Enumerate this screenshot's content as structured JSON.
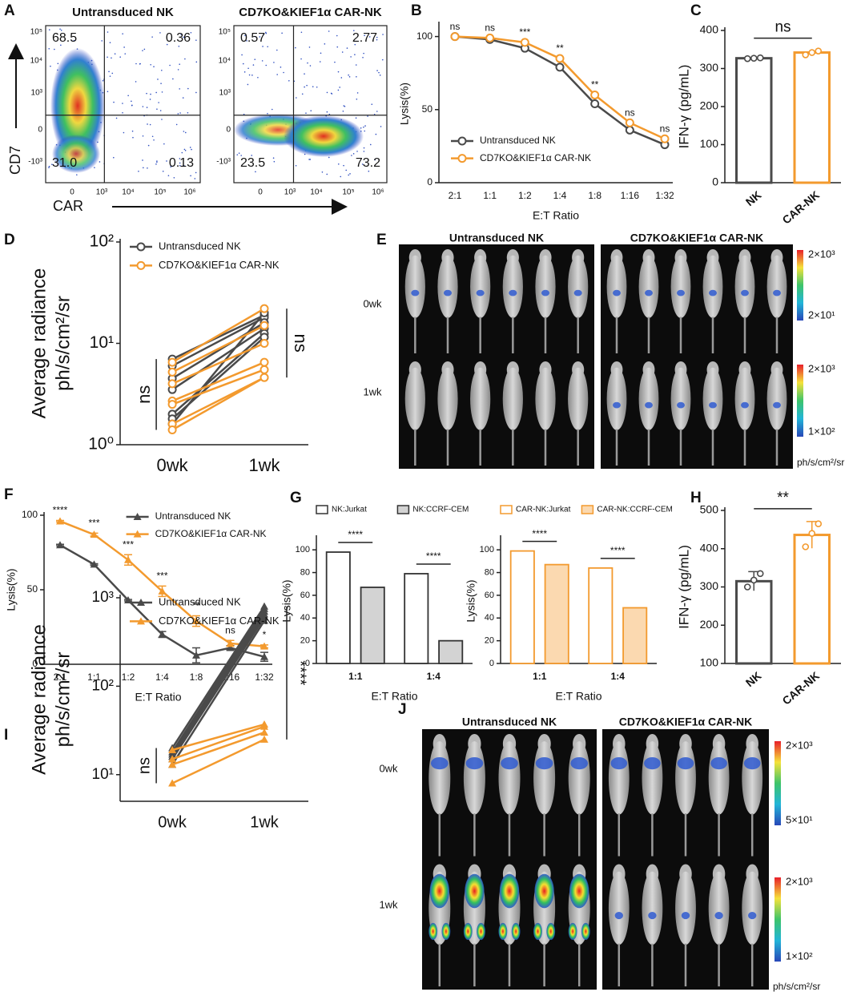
{
  "chart_data": [
    {
      "type": "line",
      "label": "B",
      "categories": [
        "2:1",
        "1:1",
        "1:2",
        "1:4",
        "1:8",
        "1:16",
        "1:32"
      ],
      "series": [
        {
          "name": "Untransduced NK",
          "color": "#4a4a4a",
          "values": [
            100,
            98,
            92,
            79,
            54,
            36,
            26
          ]
        },
        {
          "name": "CD7KO&KIEF1α CAR-NK",
          "color": "#f39a2e",
          "values": [
            100,
            99,
            96,
            85,
            60,
            41,
            30
          ]
        }
      ],
      "marker": "circle",
      "annotations": [
        "ns",
        "ns",
        "***",
        "**",
        "**",
        "ns",
        "ns"
      ],
      "ylabel": "Lysis(%)",
      "xlabel": "E:T Ratio",
      "ylim": [
        0,
        108
      ],
      "yticks": [
        0,
        50,
        100
      ],
      "legend": "lower left"
    },
    {
      "type": "bar",
      "label": "C",
      "categories": [
        "NK",
        "CAR-NK"
      ],
      "values": [
        327,
        342
      ],
      "colors": [
        "#4a4a4a",
        "#f39a2e"
      ],
      "points": [
        [
          326,
          327,
          328
        ],
        [
          336,
          342,
          346
        ]
      ],
      "annotation": "ns",
      "ylabel": "IFN-γ (pg/mL)",
      "ylim": [
        0,
        400
      ],
      "yticks": [
        0,
        100,
        200,
        300,
        400
      ]
    },
    {
      "type": "paired",
      "label": "D",
      "categories": [
        "0wk",
        "1wk"
      ],
      "series": [
        {
          "name": "Untransduced NK",
          "color": "#4a4a4a",
          "values": [
            [
              7.0,
              19
            ],
            [
              6.0,
              18
            ],
            [
              4.5,
              16
            ],
            [
              3.5,
              14
            ],
            [
              2.0,
              12.5
            ],
            [
              1.8,
              11.5
            ],
            [
              1.6,
              20
            ]
          ]
        },
        {
          "name": "CD7KO&KIEF1α CAR-NK",
          "color": "#f39a2e",
          "values": [
            [
              6.5,
              22
            ],
            [
              5.2,
              15
            ],
            [
              4.0,
              10
            ],
            [
              2.7,
              6.5
            ],
            [
              2.5,
              5.5
            ],
            [
              1.6,
              4.6
            ],
            [
              1.4,
              4.6
            ]
          ]
        }
      ],
      "marker": "circle",
      "log": true,
      "annotations": [
        "ns",
        "ns"
      ],
      "ylabel": [
        "Average radiance",
        "ph/s/cm²/sr"
      ],
      "ylim": [
        1,
        100
      ],
      "yticks": [
        {
          "value": 1,
          "label": "10⁰"
        },
        {
          "value": 10,
          "label": "10¹"
        },
        {
          "value": 100,
          "label": "10²"
        }
      ],
      "legend": "upper left"
    },
    {
      "type": "line",
      "label": "F",
      "categories": [
        "2:1",
        "1:1",
        "1:2",
        "1:4",
        "1:8",
        "1:16",
        "1:32"
      ],
      "series": [
        {
          "name": "Untransduced NK",
          "color": "#4a4a4a",
          "values": [
            80,
            67,
            43,
            20,
            6,
            11,
            5
          ],
          "errors": [
            0.5,
            0.5,
            0.5,
            2,
            5,
            1.5,
            3
          ]
        },
        {
          "name": "CD7KO&KIEF1α CAR-NK",
          "color": "#f39a2e",
          "values": [
            96,
            87,
            70,
            49,
            29,
            14,
            12
          ],
          "errors": [
            0.5,
            1,
            3.5,
            3.5,
            3.5,
            2,
            1
          ]
        }
      ],
      "marker": "triangle",
      "annotations": [
        "****",
        "***",
        "***",
        "***",
        "**",
        "ns",
        "*"
      ],
      "ylabel": "Lysis(%)",
      "xlabel": "E:T Ratio",
      "ylim": [
        0,
        100
      ],
      "yticks": [
        0,
        50,
        100
      ],
      "legend": "upper right"
    },
    {
      "type": "grouped_bar",
      "label": "G",
      "categories": [
        "1:1",
        "1:4"
      ],
      "series": [
        {
          "name": "NK:Jurkat",
          "color": "#333333",
          "fill": "#ffffff",
          "values": [
            98,
            79
          ]
        },
        {
          "name": "NK:CCRF-CEM",
          "color": "#333333",
          "fill": "#d3d3d3",
          "values": [
            67,
            20
          ]
        }
      ],
      "annotations": [
        "****",
        "****"
      ],
      "ylabel": "Lysis(%)",
      "xlabel": "E:T Ratio",
      "ylim": [
        0,
        110
      ],
      "yticks": [
        0,
        20,
        40,
        60,
        80,
        100
      ]
    },
    {
      "type": "grouped_bar",
      "categories": [
        "1:1",
        "1:4"
      ],
      "series": [
        {
          "name": "CAR-NK:Jurkat",
          "color": "#f39a2e",
          "fill": "#ffffff",
          "values": [
            99,
            84
          ]
        },
        {
          "name": "CAR-NK:CCRF-CEM",
          "color": "#f39a2e",
          "fill": "#fbd9b0",
          "values": [
            87,
            49
          ]
        }
      ],
      "annotations": [
        "****",
        "****"
      ],
      "ylabel": "Lysis(%)",
      "xlabel": "E:T Ratio",
      "ylim": [
        0,
        110
      ],
      "yticks": [
        0,
        20,
        40,
        60,
        80,
        100
      ]
    },
    {
      "type": "bar",
      "label": "H",
      "categories": [
        "NK",
        "CAR-NK"
      ],
      "values": [
        315,
        436
      ],
      "errors": [
        25,
        35
      ],
      "colors": [
        "#4a4a4a",
        "#f39a2e"
      ],
      "points": [
        [
          300,
          318,
          335
        ],
        [
          405,
          440,
          465
        ]
      ],
      "annotation": "**",
      "ylabel": "IFN-γ (pg/mL)",
      "ylim": [
        100,
        500
      ],
      "yticks": [
        100,
        200,
        300,
        400,
        500
      ]
    },
    {
      "type": "paired",
      "label": "I",
      "categories": [
        "0wk",
        "1wk"
      ],
      "series": [
        {
          "name": "Untransduced NK",
          "color": "#4a4a4a",
          "values": [
            [
              20,
              800
            ],
            [
              18,
              750
            ],
            [
              17,
              700
            ],
            [
              16,
              650
            ],
            [
              15,
              600
            ],
            [
              13,
              550
            ]
          ]
        },
        {
          "name": "CD7KO&KIEF1α CAR-NK",
          "color": "#f39a2e",
          "values": [
            [
              19,
              37
            ],
            [
              15,
              35
            ],
            [
              13,
              30
            ],
            [
              8,
              25
            ]
          ]
        }
      ],
      "marker": "triangle",
      "log": true,
      "annotations": [
        "ns",
        "****"
      ],
      "ylabel": [
        "Average radiance",
        "ph/s/cm²/sr"
      ],
      "ylim": [
        5,
        1000
      ],
      "yticks": [
        {
          "value": 10,
          "label": "10¹"
        },
        {
          "value": 100,
          "label": "10²"
        },
        {
          "value": 1000,
          "label": "10³"
        }
      ],
      "legend": "upper left"
    }
  ],
  "flow_panel": {
    "label": "A",
    "y_axis_label": "CD7",
    "x_axis_label": "CAR",
    "y_tick_labels": [
      "10⁵",
      "10⁴",
      "10³",
      "0",
      "-10³"
    ],
    "x_tick_labels": [
      "0",
      "10³",
      "10⁴",
      "10⁵",
      "10⁶"
    ],
    "plots": [
      {
        "title": "Untransduced NK",
        "quadrants": [
          "68.5",
          "0.36",
          "31.0",
          "0.13"
        ]
      },
      {
        "title": "CD7KO&KIEF1α CAR-NK",
        "quadrants": [
          "0.57",
          "2.77",
          "23.5",
          "73.2"
        ]
      }
    ]
  },
  "imaging_panels": [
    {
      "label": "E",
      "groups": [
        "Untransduced NK",
        "CD7KO&KIEF1α CAR-NK"
      ],
      "timepoints": [
        "0wk",
        "1wk"
      ],
      "scales": [
        [
          "2×10³",
          "2×10¹"
        ],
        [
          "2×10³",
          "1×10²"
        ]
      ],
      "unit": "ph/s/cm²/sr"
    },
    {
      "label": "J",
      "groups": [
        "Untransduced NK",
        "CD7KO&KIEF1α CAR-NK"
      ],
      "timepoints": [
        "0wk",
        "1wk"
      ],
      "scales": [
        [
          "2×10³",
          "5×10¹"
        ],
        [
          "2×10³",
          "1×10²"
        ]
      ],
      "unit": "ph/s/cm²/sr"
    }
  ]
}
